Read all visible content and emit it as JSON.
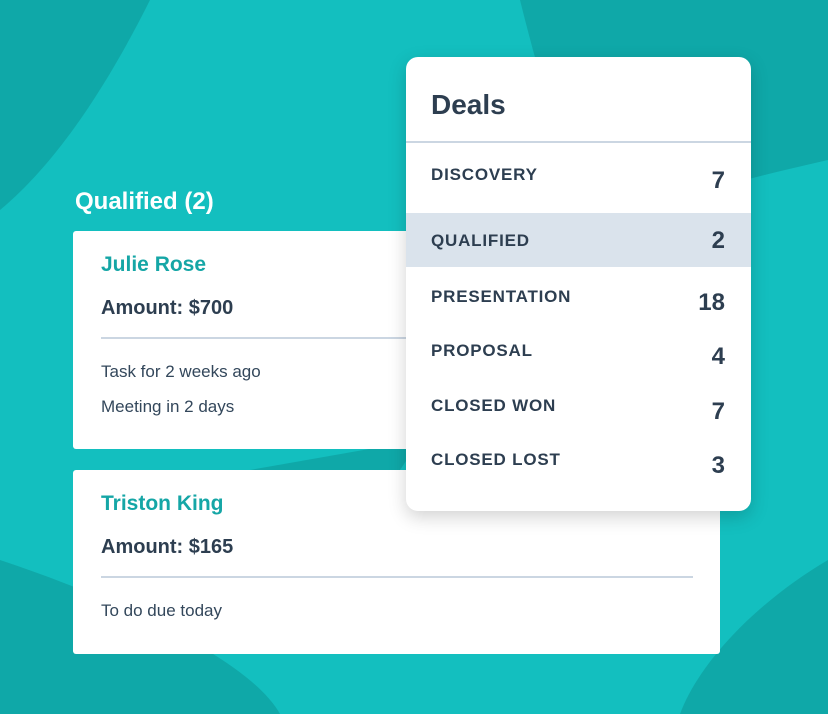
{
  "colors": {
    "background": "#13bfbf",
    "background_shape": "#0fa8a8",
    "accent": "#15a6a6",
    "selected_row": "#dae3ec",
    "text": "#2d3e50"
  },
  "column": {
    "title": "Qualified (2)"
  },
  "cards": [
    {
      "name": "Julie Rose",
      "amount": "Amount: $700",
      "activities": [
        "Task for 2 weeks ago",
        "Meeting in 2 days"
      ]
    },
    {
      "name": "Triston King",
      "amount": "Amount: $165",
      "activities": [
        "To do due today"
      ]
    }
  ],
  "deals": {
    "title": "Deals",
    "stages": [
      {
        "label": "DISCOVERY",
        "count": "7"
      },
      {
        "label": "QUALIFIED",
        "count": "2",
        "selected": true
      },
      {
        "label": "PRESENTATION",
        "count": "18"
      },
      {
        "label": "PROPOSAL",
        "count": "4"
      },
      {
        "label": "CLOSED WON",
        "count": "7"
      },
      {
        "label": "CLOSED LOST",
        "count": "3"
      }
    ]
  }
}
